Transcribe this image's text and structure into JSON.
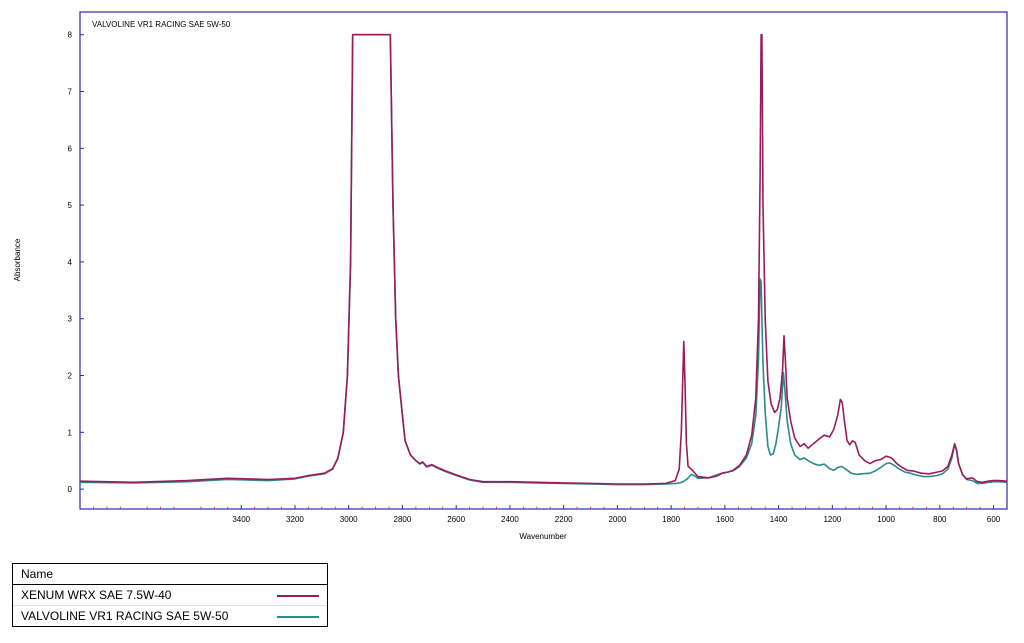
{
  "chart_data": {
    "type": "line",
    "title": "VALVOLINE VR1 RACING SAE 5W-50",
    "xlabel": "Wavenumber",
    "ylabel": "Absorbance",
    "xlim": [
      4000,
      550
    ],
    "ylim": [
      -0.35,
      8.4
    ],
    "x_reversed": true,
    "xticks": [
      3400,
      3200,
      3000,
      2800,
      2600,
      2400,
      2200,
      2000,
      1800,
      1600,
      1400,
      1200,
      1000,
      800,
      600
    ],
    "yticks": [
      0,
      1,
      2,
      3,
      4,
      5,
      6,
      7,
      8
    ],
    "grid": false,
    "series": [
      {
        "name": "XENUM WRX SAE 7.5W-40",
        "color": "#9b1b5a",
        "points": [
          [
            4000,
            0.14
          ],
          [
            3800,
            0.12
          ],
          [
            3600,
            0.15
          ],
          [
            3450,
            0.19
          ],
          [
            3300,
            0.17
          ],
          [
            3200,
            0.19
          ],
          [
            3150,
            0.24
          ],
          [
            3090,
            0.28
          ],
          [
            3060,
            0.36
          ],
          [
            3040,
            0.55
          ],
          [
            3020,
            1.0
          ],
          [
            3005,
            2.0
          ],
          [
            2993,
            4.0
          ],
          [
            2985,
            8.0
          ],
          [
            2845,
            8.0
          ],
          [
            2835,
            5.0
          ],
          [
            2825,
            3.0
          ],
          [
            2815,
            2.0
          ],
          [
            2800,
            1.3
          ],
          [
            2790,
            0.85
          ],
          [
            2770,
            0.6
          ],
          [
            2750,
            0.5
          ],
          [
            2735,
            0.45
          ],
          [
            2725,
            0.48
          ],
          [
            2710,
            0.4
          ],
          [
            2690,
            0.43
          ],
          [
            2670,
            0.38
          ],
          [
            2640,
            0.32
          ],
          [
            2600,
            0.25
          ],
          [
            2550,
            0.17
          ],
          [
            2500,
            0.13
          ],
          [
            2400,
            0.13
          ],
          [
            2300,
            0.12
          ],
          [
            2200,
            0.11
          ],
          [
            2100,
            0.1
          ],
          [
            2000,
            0.09
          ],
          [
            1900,
            0.09
          ],
          [
            1820,
            0.1
          ],
          [
            1785,
            0.15
          ],
          [
            1770,
            0.35
          ],
          [
            1762,
            1.0
          ],
          [
            1757,
            1.9
          ],
          [
            1753,
            2.6
          ],
          [
            1748,
            1.8
          ],
          [
            1743,
            0.8
          ],
          [
            1737,
            0.4
          ],
          [
            1725,
            0.35
          ],
          [
            1715,
            0.3
          ],
          [
            1700,
            0.22
          ],
          [
            1660,
            0.2
          ],
          [
            1630,
            0.23
          ],
          [
            1610,
            0.28
          ],
          [
            1590,
            0.3
          ],
          [
            1570,
            0.33
          ],
          [
            1545,
            0.42
          ],
          [
            1520,
            0.6
          ],
          [
            1500,
            0.95
          ],
          [
            1485,
            1.6
          ],
          [
            1475,
            3.0
          ],
          [
            1469,
            5.5
          ],
          [
            1465,
            8.0
          ],
          [
            1462,
            8.0
          ],
          [
            1458,
            5.0
          ],
          [
            1450,
            3.0
          ],
          [
            1440,
            1.9
          ],
          [
            1428,
            1.5
          ],
          [
            1415,
            1.35
          ],
          [
            1405,
            1.4
          ],
          [
            1395,
            1.6
          ],
          [
            1385,
            2.1
          ],
          [
            1380,
            2.7
          ],
          [
            1375,
            2.3
          ],
          [
            1368,
            1.6
          ],
          [
            1355,
            1.2
          ],
          [
            1340,
            0.9
          ],
          [
            1320,
            0.75
          ],
          [
            1305,
            0.8
          ],
          [
            1290,
            0.72
          ],
          [
            1270,
            0.8
          ],
          [
            1250,
            0.88
          ],
          [
            1230,
            0.95
          ],
          [
            1210,
            0.92
          ],
          [
            1195,
            1.05
          ],
          [
            1180,
            1.3
          ],
          [
            1170,
            1.58
          ],
          [
            1163,
            1.52
          ],
          [
            1155,
            1.2
          ],
          [
            1145,
            0.85
          ],
          [
            1135,
            0.78
          ],
          [
            1125,
            0.85
          ],
          [
            1115,
            0.82
          ],
          [
            1100,
            0.6
          ],
          [
            1080,
            0.5
          ],
          [
            1060,
            0.45
          ],
          [
            1040,
            0.5
          ],
          [
            1020,
            0.52
          ],
          [
            1000,
            0.58
          ],
          [
            980,
            0.55
          ],
          [
            960,
            0.45
          ],
          [
            940,
            0.38
          ],
          [
            920,
            0.33
          ],
          [
            900,
            0.32
          ],
          [
            870,
            0.28
          ],
          [
            840,
            0.27
          ],
          [
            810,
            0.3
          ],
          [
            790,
            0.32
          ],
          [
            770,
            0.4
          ],
          [
            755,
            0.6
          ],
          [
            745,
            0.8
          ],
          [
            738,
            0.7
          ],
          [
            730,
            0.45
          ],
          [
            715,
            0.25
          ],
          [
            700,
            0.18
          ],
          [
            680,
            0.2
          ],
          [
            660,
            0.13
          ],
          [
            640,
            0.12
          ],
          [
            620,
            0.14
          ],
          [
            600,
            0.15
          ],
          [
            580,
            0.15
          ],
          [
            550,
            0.14
          ]
        ]
      },
      {
        "name": "VALVOLINE VR1 RACING SAE 5W-50",
        "color": "#2a8a8c",
        "points": [
          [
            4000,
            0.12
          ],
          [
            3800,
            0.11
          ],
          [
            3600,
            0.13
          ],
          [
            3450,
            0.17
          ],
          [
            3300,
            0.15
          ],
          [
            3200,
            0.18
          ],
          [
            3150,
            0.23
          ],
          [
            3090,
            0.27
          ],
          [
            3060,
            0.35
          ],
          [
            3040,
            0.54
          ],
          [
            3020,
            1.0
          ],
          [
            3005,
            2.0
          ],
          [
            2993,
            4.0
          ],
          [
            2985,
            8.0
          ],
          [
            2845,
            8.0
          ],
          [
            2835,
            5.0
          ],
          [
            2825,
            3.0
          ],
          [
            2815,
            2.0
          ],
          [
            2800,
            1.3
          ],
          [
            2790,
            0.85
          ],
          [
            2770,
            0.6
          ],
          [
            2750,
            0.5
          ],
          [
            2735,
            0.44
          ],
          [
            2725,
            0.47
          ],
          [
            2710,
            0.39
          ],
          [
            2690,
            0.42
          ],
          [
            2670,
            0.37
          ],
          [
            2640,
            0.31
          ],
          [
            2600,
            0.24
          ],
          [
            2550,
            0.16
          ],
          [
            2500,
            0.12
          ],
          [
            2400,
            0.12
          ],
          [
            2300,
            0.11
          ],
          [
            2200,
            0.1
          ],
          [
            2100,
            0.09
          ],
          [
            2000,
            0.08
          ],
          [
            1900,
            0.08
          ],
          [
            1820,
            0.09
          ],
          [
            1780,
            0.1
          ],
          [
            1760,
            0.12
          ],
          [
            1740,
            0.18
          ],
          [
            1725,
            0.26
          ],
          [
            1715,
            0.24
          ],
          [
            1700,
            0.19
          ],
          [
            1660,
            0.2
          ],
          [
            1630,
            0.25
          ],
          [
            1610,
            0.28
          ],
          [
            1590,
            0.3
          ],
          [
            1570,
            0.32
          ],
          [
            1545,
            0.4
          ],
          [
            1520,
            0.55
          ],
          [
            1500,
            0.8
          ],
          [
            1485,
            1.3
          ],
          [
            1475,
            2.3
          ],
          [
            1469,
            3.7
          ],
          [
            1465,
            3.65
          ],
          [
            1462,
            3.0
          ],
          [
            1458,
            2.2
          ],
          [
            1450,
            1.35
          ],
          [
            1440,
            0.75
          ],
          [
            1430,
            0.6
          ],
          [
            1420,
            0.62
          ],
          [
            1410,
            0.8
          ],
          [
            1400,
            1.1
          ],
          [
            1390,
            1.45
          ],
          [
            1382,
            2.05
          ],
          [
            1376,
            1.7
          ],
          [
            1368,
            1.2
          ],
          [
            1355,
            0.8
          ],
          [
            1340,
            0.6
          ],
          [
            1320,
            0.52
          ],
          [
            1305,
            0.55
          ],
          [
            1290,
            0.5
          ],
          [
            1270,
            0.45
          ],
          [
            1250,
            0.42
          ],
          [
            1230,
            0.44
          ],
          [
            1210,
            0.36
          ],
          [
            1195,
            0.33
          ],
          [
            1180,
            0.38
          ],
          [
            1165,
            0.4
          ],
          [
            1150,
            0.35
          ],
          [
            1130,
            0.28
          ],
          [
            1110,
            0.26
          ],
          [
            1090,
            0.27
          ],
          [
            1060,
            0.28
          ],
          [
            1040,
            0.32
          ],
          [
            1020,
            0.38
          ],
          [
            1000,
            0.45
          ],
          [
            985,
            0.46
          ],
          [
            970,
            0.42
          ],
          [
            950,
            0.35
          ],
          [
            930,
            0.3
          ],
          [
            910,
            0.28
          ],
          [
            890,
            0.25
          ],
          [
            860,
            0.22
          ],
          [
            840,
            0.22
          ],
          [
            810,
            0.24
          ],
          [
            790,
            0.27
          ],
          [
            770,
            0.35
          ],
          [
            755,
            0.55
          ],
          [
            745,
            0.78
          ],
          [
            738,
            0.68
          ],
          [
            730,
            0.45
          ],
          [
            715,
            0.25
          ],
          [
            700,
            0.17
          ],
          [
            680,
            0.15
          ],
          [
            660,
            0.1
          ],
          [
            640,
            0.1
          ],
          [
            620,
            0.12
          ],
          [
            600,
            0.13
          ],
          [
            580,
            0.13
          ],
          [
            550,
            0.12
          ]
        ]
      }
    ],
    "annotations": [
      {
        "text": "VALVOLINE VR1 RACING SAE 5W-50",
        "position": "top-left-inside-plot"
      }
    ],
    "legend": {
      "placement": "bottom-left",
      "header": "Name"
    }
  }
}
